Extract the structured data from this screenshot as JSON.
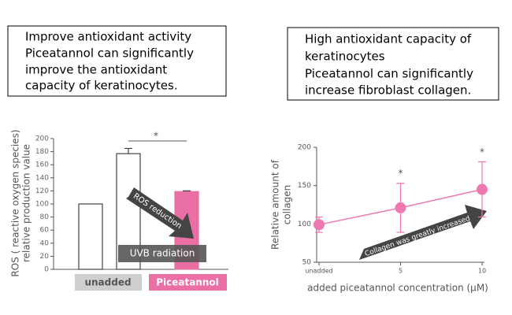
{
  "text_boxes": [
    {
      "lines": [
        "Improve antioxidant activity",
        "Piceatannol can significantly",
        "improve the antioxidant",
        "capacity of keratinocytes."
      ]
    },
    {
      "lines": [
        "High antioxidant capacity of",
        "keratinocytes",
        "Piceatannol can significantly",
        "increase fibroblast collagen."
      ]
    }
  ],
  "chart_data": [
    {
      "type": "bar",
      "ylabel": [
        "ROS ( reactive oxygen species)",
        "relative production value"
      ],
      "categories": [
        "unadded",
        null,
        "Piceatannol"
      ],
      "values": [
        100,
        177,
        119
      ],
      "errors": [
        null,
        8,
        1
      ],
      "colors": [
        "#ffffff",
        "#ffffff",
        "#ea6fa5"
      ],
      "ylim": [
        0,
        200
      ],
      "yticks": [
        0,
        20,
        40,
        60,
        80,
        100,
        120,
        140,
        160,
        180,
        200
      ],
      "comparison_label": "*",
      "annotations": [
        "UVB radiation",
        "ROS reduction"
      ]
    },
    {
      "type": "line",
      "ylabel": [
        "Relative amount of",
        "collagen"
      ],
      "xlabel": "added piceatannol concentration (μM)",
      "x": [
        0,
        5,
        10
      ],
      "values": [
        99,
        121,
        145
      ],
      "errors": [
        10,
        32,
        36
      ],
      "significance": [
        null,
        "*",
        "*"
      ],
      "color": "#ee78b0",
      "xlim": [
        0,
        10
      ],
      "xticks": [
        {
          "value": 0,
          "label": "unadded"
        },
        5,
        10
      ],
      "ylim": [
        50,
        200
      ],
      "yticks": [
        50,
        100,
        150,
        200
      ],
      "annotations": [
        "Collagen was greatly increased"
      ]
    }
  ]
}
